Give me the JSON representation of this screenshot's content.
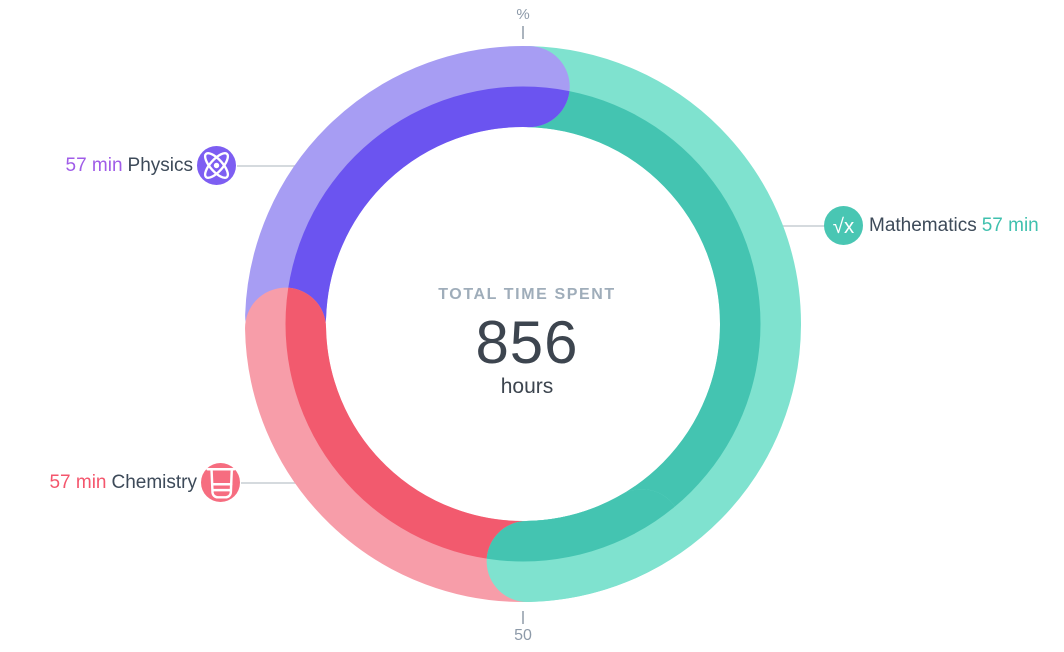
{
  "chart_data": {
    "type": "donut",
    "center": {
      "title": "TOTAL TIME SPENT",
      "value": "856",
      "unit": "hours"
    },
    "scale": {
      "top_label": "%",
      "bottom_label": "50"
    },
    "legend_position": "sides",
    "segments": [
      {
        "id": "mathematics",
        "label": "Mathematics",
        "value": "57 min",
        "percent": 49.3,
        "start_deg": 1.5,
        "end_deg": 179,
        "arc_light": "#7fe2cf",
        "arc_dark": "#44c4b1",
        "text_color": "#3fc0ae",
        "icon_bg": "#49c6b3",
        "icon": "sqrt-icon",
        "icon_glyph": "√x"
      },
      {
        "id": "physics",
        "label": "Physics",
        "value": "57 min",
        "percent": 24.9,
        "start_deg": 272,
        "end_deg": 361.5,
        "arc_light": "#a79df3",
        "arc_dark": "#6b54f0",
        "text_color": "#a05ce8",
        "icon_bg": "#7d5ef2",
        "icon": "atom-icon"
      },
      {
        "id": "chemistry",
        "label": "Chemistry",
        "value": "57 min",
        "percent": 25.0,
        "start_deg": 179,
        "end_deg": 269,
        "arc_light": "#f79da9",
        "arc_dark": "#f25a6e",
        "text_color": "#f4566d",
        "icon_bg": "#f66d80",
        "icon": "beaker-icon"
      }
    ]
  }
}
